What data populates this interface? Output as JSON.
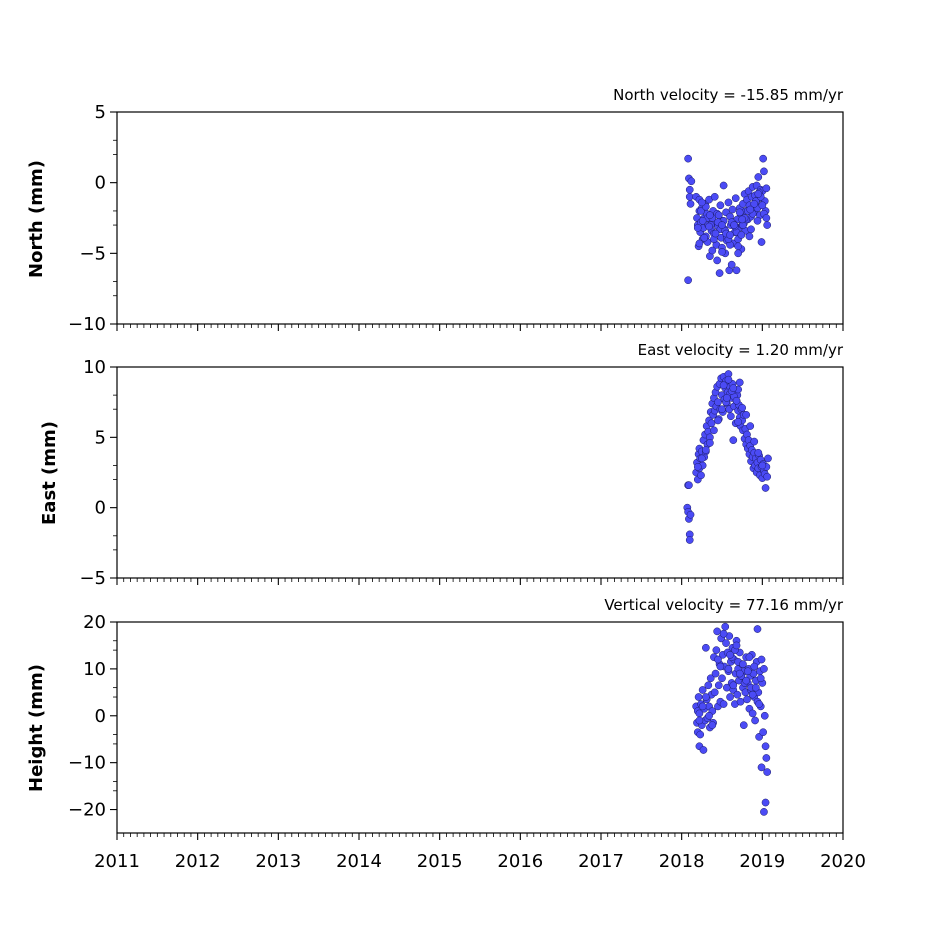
{
  "chart_data": [
    {
      "type": "scatter",
      "title": "North velocity = -15.85 mm/yr",
      "xlabel": "",
      "ylabel": "North (mm)",
      "xlim": [
        2011,
        2020
      ],
      "ylim": [
        -10,
        5
      ],
      "yticks": [
        5,
        0,
        -5,
        -10
      ],
      "ytick_labels": [
        "5",
        "0",
        "−5",
        "−10"
      ],
      "grid": false,
      "color": "#4b4bf5",
      "series": [
        {
          "x": [
            2018.08,
            2018.09,
            2018.1,
            2018.1,
            2018.11,
            2018.12,
            2018.08,
            2018.18,
            2018.19,
            2018.2,
            2018.21,
            2018.22,
            2018.22,
            2018.23,
            2018.24,
            2018.25,
            2018.26,
            2018.27,
            2018.28,
            2018.29,
            2018.3,
            2018.31,
            2018.32,
            2018.33,
            2018.34,
            2018.35,
            2018.36,
            2018.37,
            2018.38,
            2018.39,
            2018.4,
            2018.41,
            2018.42,
            2018.43,
            2018.44,
            2018.45,
            2018.46,
            2018.47,
            2018.48,
            2018.49,
            2018.5,
            2018.51,
            2018.52,
            2018.53,
            2018.54,
            2018.55,
            2018.56,
            2018.57,
            2018.58,
            2018.59,
            2018.6,
            2018.61,
            2018.62,
            2018.63,
            2018.64,
            2018.65,
            2018.66,
            2018.67,
            2018.68,
            2018.69,
            2018.7,
            2018.71,
            2018.72,
            2018.73,
            2018.74,
            2018.75,
            2018.76,
            2018.77,
            2018.78,
            2018.79,
            2018.8,
            2018.81,
            2018.82,
            2018.83,
            2018.84,
            2018.85,
            2018.86,
            2018.87,
            2018.88,
            2018.89,
            2018.9,
            2018.91,
            2018.92,
            2018.93,
            2018.94,
            2018.95,
            2018.96,
            2018.97,
            2018.98,
            2018.99,
            2019.0,
            2019.01,
            2019.02,
            2019.03,
            2019.04,
            2019.05,
            2019.06,
            2018.2,
            2018.24,
            2018.28,
            2018.32,
            2018.36,
            2018.4,
            2018.44,
            2018.48,
            2018.52,
            2018.56,
            2018.6,
            2018.64,
            2018.68,
            2018.72,
            2018.76,
            2018.8,
            2018.84,
            2018.88,
            2018.92,
            2018.96,
            2019.0,
            2018.22,
            2018.26,
            2018.3,
            2018.34,
            2018.38,
            2018.42,
            2018.46,
            2018.5,
            2018.54,
            2018.58,
            2018.62,
            2018.66,
            2018.7,
            2018.74,
            2018.78,
            2018.82,
            2018.86,
            2018.9,
            2018.94,
            2018.98,
            2019.02,
            2018.25,
            2018.35,
            2018.45,
            2018.55,
            2018.65,
            2018.75,
            2018.85,
            2018.95,
            2019.05,
            2018.5,
            2018.6,
            2018.7
          ],
          "y": [
            1.7,
            0.3,
            -0.5,
            -1.0,
            -1.5,
            0.1,
            -6.9,
            -1.0,
            -2.5,
            -3.0,
            -4.5,
            -1.2,
            -2.0,
            -3.5,
            -2.8,
            -1.8,
            -4.0,
            -3.2,
            -2.5,
            -1.5,
            -3.8,
            -2.2,
            -4.2,
            -3.0,
            -1.2,
            -5.2,
            -2.6,
            -3.4,
            -4.8,
            -2.0,
            -3.6,
            -1.0,
            -2.9,
            -4.4,
            -5.5,
            -3.1,
            -2.3,
            -6.4,
            -1.6,
            -3.9,
            -4.6,
            -2.7,
            -0.2,
            -3.3,
            -5.0,
            -2.1,
            -4.1,
            -3.7,
            -1.4,
            -6.2,
            -2.4,
            -3.0,
            -5.8,
            -1.9,
            -4.3,
            -2.8,
            -3.5,
            -1.1,
            -6.2,
            -2.6,
            -4.0,
            -3.2,
            -1.8,
            -2.2,
            -4.7,
            -3.0,
            -1.5,
            -2.9,
            -0.8,
            -3.4,
            -2.0,
            -1.2,
            -2.6,
            -0.6,
            -3.8,
            -1.9,
            -2.4,
            -1.0,
            -0.3,
            -1.7,
            -2.1,
            -0.9,
            -1.4,
            -0.2,
            -1.8,
            0.4,
            -1.1,
            -2.3,
            -0.5,
            -4.2,
            -0.6,
            1.7,
            0.8,
            -1.3,
            -2.0,
            -0.4,
            -3.0,
            -3.2,
            -2.0,
            -3.9,
            -2.5,
            -3.0,
            -4.0,
            -2.2,
            -3.3,
            -2.7,
            -3.8,
            -4.4,
            -2.9,
            -3.5,
            -2.1,
            -3.0,
            -2.6,
            -1.6,
            -2.2,
            -1.3,
            -0.7,
            -1.6,
            -4.3,
            -2.7,
            -1.7,
            -3.1,
            -2.5,
            -3.6,
            -2.3,
            -4.9,
            -3.4,
            -4.0,
            -2.8,
            -3.1,
            -4.5,
            -3.7,
            -2.5,
            -2.0,
            -3.3,
            -1.5,
            -2.7,
            -1.0,
            -2.2,
            -1.4,
            -2.3,
            -2.8,
            -3.6,
            -3.0,
            -2.6,
            -1.9,
            -0.8,
            -2.5,
            -3.0,
            -3.7,
            -5.0
          ]
        }
      ]
    },
    {
      "type": "scatter",
      "title": "East velocity = 1.20 mm/yr",
      "xlabel": "",
      "ylabel": "East (mm)",
      "xlim": [
        2011,
        2020
      ],
      "ylim": [
        -5,
        10
      ],
      "yticks": [
        10,
        5,
        0,
        -5
      ],
      "ytick_labels": [
        "10",
        "5",
        "0",
        "−5"
      ],
      "grid": false,
      "color": "#4b4bf5",
      "series": [
        {
          "x": [
            2018.07,
            2018.08,
            2018.08,
            2018.09,
            2018.09,
            2018.1,
            2018.1,
            2018.11,
            2018.18,
            2018.19,
            2018.2,
            2018.21,
            2018.22,
            2018.22,
            2018.23,
            2018.24,
            2018.25,
            2018.26,
            2018.27,
            2018.28,
            2018.29,
            2018.3,
            2018.31,
            2018.32,
            2018.33,
            2018.34,
            2018.35,
            2018.36,
            2018.37,
            2018.38,
            2018.39,
            2018.4,
            2018.41,
            2018.42,
            2018.43,
            2018.44,
            2018.45,
            2018.46,
            2018.47,
            2018.48,
            2018.49,
            2018.5,
            2018.51,
            2018.52,
            2018.53,
            2018.54,
            2018.55,
            2018.56,
            2018.57,
            2018.58,
            2018.59,
            2018.6,
            2018.61,
            2018.62,
            2018.63,
            2018.64,
            2018.65,
            2018.66,
            2018.67,
            2018.68,
            2018.69,
            2018.7,
            2018.71,
            2018.72,
            2018.73,
            2018.74,
            2018.75,
            2018.76,
            2018.77,
            2018.78,
            2018.79,
            2018.8,
            2018.81,
            2018.82,
            2018.83,
            2018.84,
            2018.85,
            2018.86,
            2018.87,
            2018.88,
            2018.89,
            2018.9,
            2018.91,
            2018.92,
            2018.93,
            2018.94,
            2018.95,
            2018.96,
            2018.97,
            2018.98,
            2018.99,
            2019.0,
            2019.01,
            2019.02,
            2019.03,
            2019.04,
            2019.05,
            2019.06,
            2019.07,
            2018.2,
            2018.25,
            2018.3,
            2018.35,
            2018.4,
            2018.45,
            2018.5,
            2018.55,
            2018.6,
            2018.65,
            2018.7,
            2018.75,
            2018.8,
            2018.85,
            2018.9,
            2018.95,
            2019.0,
            2018.52,
            2018.58,
            2018.62,
            2018.68,
            2018.72,
            2018.56,
            2018.64,
            2018.7
          ],
          "y": [
            0.0,
            -0.3,
            1.6,
            -0.8,
            1.6,
            -1.9,
            -2.3,
            -0.5,
            2.5,
            3.2,
            2.0,
            3.8,
            2.8,
            4.2,
            3.5,
            2.3,
            4.0,
            3.0,
            4.8,
            3.6,
            5.2,
            4.0,
            5.8,
            4.5,
            5.4,
            6.2,
            5.0,
            6.8,
            6.0,
            7.4,
            6.6,
            7.8,
            6.9,
            8.2,
            7.2,
            8.6,
            7.5,
            6.3,
            8.8,
            7.0,
            9.2,
            8.0,
            6.8,
            9.3,
            7.7,
            8.5,
            9.0,
            7.4,
            8.2,
            9.5,
            7.0,
            8.6,
            6.5,
            7.8,
            8.8,
            4.8,
            7.2,
            8.4,
            6.0,
            7.6,
            8.0,
            6.9,
            7.3,
            6.4,
            5.8,
            7.0,
            6.2,
            5.5,
            6.6,
            4.9,
            5.6,
            4.5,
            5.2,
            4.2,
            4.8,
            3.8,
            4.4,
            3.3,
            4.1,
            3.6,
            2.8,
            3.9,
            3.0,
            3.5,
            2.5,
            3.2,
            2.8,
            3.7,
            2.3,
            3.4,
            2.9,
            2.1,
            3.1,
            2.6,
            2.4,
            1.4,
            2.9,
            2.2,
            3.5,
            2.9,
            3.5,
            4.1,
            4.6,
            5.5,
            6.2,
            7.0,
            7.5,
            8.1,
            7.9,
            8.4,
            7.1,
            6.6,
            5.8,
            4.7,
            3.9,
            3.0,
            8.7,
            9.1,
            8.3,
            7.6,
            8.9,
            7.8,
            8.5,
            6.1
          ]
        }
      ]
    },
    {
      "type": "scatter",
      "title": "Vertical velocity = 77.16 mm/yr",
      "xlabel": "",
      "ylabel": "Height (mm)",
      "xlim": [
        2011,
        2020
      ],
      "ylim": [
        -25,
        20
      ],
      "yticks": [
        20,
        10,
        0,
        -10,
        -20
      ],
      "ytick_labels": [
        "20",
        "10",
        "0",
        "−10",
        "−20"
      ],
      "grid": false,
      "color": "#4b4bf5",
      "series": [
        {
          "x": [
            2018.18,
            2018.19,
            2018.2,
            2018.2,
            2018.21,
            2018.22,
            2018.22,
            2018.23,
            2018.24,
            2018.25,
            2018.26,
            2018.27,
            2018.28,
            2018.29,
            2018.3,
            2018.31,
            2018.32,
            2018.33,
            2018.34,
            2018.35,
            2018.36,
            2018.37,
            2018.38,
            2018.39,
            2018.4,
            2018.41,
            2018.42,
            2018.43,
            2018.44,
            2018.45,
            2018.46,
            2018.47,
            2018.48,
            2018.49,
            2018.5,
            2018.51,
            2018.52,
            2018.53,
            2018.54,
            2018.55,
            2018.56,
            2018.57,
            2018.58,
            2018.59,
            2018.6,
            2018.61,
            2018.62,
            2018.63,
            2018.64,
            2018.65,
            2018.66,
            2018.67,
            2018.68,
            2018.69,
            2018.7,
            2018.71,
            2018.72,
            2018.73,
            2018.74,
            2018.75,
            2018.76,
            2018.77,
            2018.78,
            2018.79,
            2018.8,
            2018.81,
            2018.82,
            2018.83,
            2018.84,
            2018.85,
            2018.86,
            2018.87,
            2018.88,
            2018.89,
            2018.9,
            2018.91,
            2018.92,
            2018.93,
            2018.94,
            2018.95,
            2018.96,
            2018.97,
            2018.98,
            2018.99,
            2019.0,
            2019.01,
            2019.02,
            2019.03,
            2019.04,
            2019.05,
            2019.06,
            2019.04,
            2019.02,
            2018.99,
            2018.22,
            2018.26,
            2018.3,
            2018.34,
            2018.38,
            2018.58,
            2018.62,
            2018.66,
            2018.7,
            2018.74,
            2018.78,
            2018.82,
            2018.86,
            2018.9,
            2018.94,
            2018.98,
            2018.6,
            2018.64,
            2018.68,
            2018.72,
            2018.76,
            2018.8,
            2018.84,
            2018.88,
            2018.92,
            2018.96,
            2018.45,
            2018.48,
            2018.52
          ],
          "y": [
            2.0,
            -1.5,
            1.0,
            -3.5,
            4.0,
            -6.5,
            0.5,
            -4.0,
            2.5,
            -2.0,
            5.5,
            -7.3,
            1.5,
            -1.0,
            14.5,
            3.5,
            -0.5,
            6.5,
            2.0,
            -2.5,
            8.0,
            4.5,
            1.0,
            -1.5,
            12.5,
            5.0,
            9.0,
            14.0,
            18.0,
            2.0,
            6.5,
            11.0,
            3.0,
            16.5,
            8.0,
            13.0,
            2.5,
            10.5,
            19.0,
            15.5,
            6.0,
            13.5,
            9.5,
            17.0,
            4.0,
            11.5,
            7.0,
            14.5,
            5.5,
            12.0,
            2.5,
            9.0,
            16.0,
            4.5,
            10.0,
            7.5,
            13.5,
            3.0,
            8.5,
            11.0,
            6.0,
            -2.0,
            9.5,
            5.0,
            12.5,
            3.5,
            7.0,
            10.0,
            1.5,
            8.5,
            5.5,
            13.0,
            0.5,
            9.0,
            4.0,
            -1.0,
            7.5,
            11.5,
            18.5,
            5.0,
            -4.5,
            9.5,
            2.0,
            12.0,
            7.0,
            -3.5,
            10.0,
            0.0,
            -6.5,
            -9.0,
            -12.0,
            -18.5,
            -20.5,
            -11.0,
            -1.0,
            2.0,
            4.0,
            0.0,
            -2.0,
            10.0,
            12.5,
            14.0,
            11.5,
            8.5,
            7.0,
            9.5,
            6.0,
            10.5,
            3.0,
            8.0,
            13.0,
            6.5,
            15.0,
            9.0,
            11.0,
            7.5,
            12.5,
            4.5,
            6.0,
            2.5,
            12.0,
            10.5,
            17.5
          ]
        }
      ]
    }
  ],
  "x_tick_labels": [
    "2011",
    "2012",
    "2013",
    "2014",
    "2015",
    "2016",
    "2017",
    "2018",
    "2019",
    "2020"
  ]
}
